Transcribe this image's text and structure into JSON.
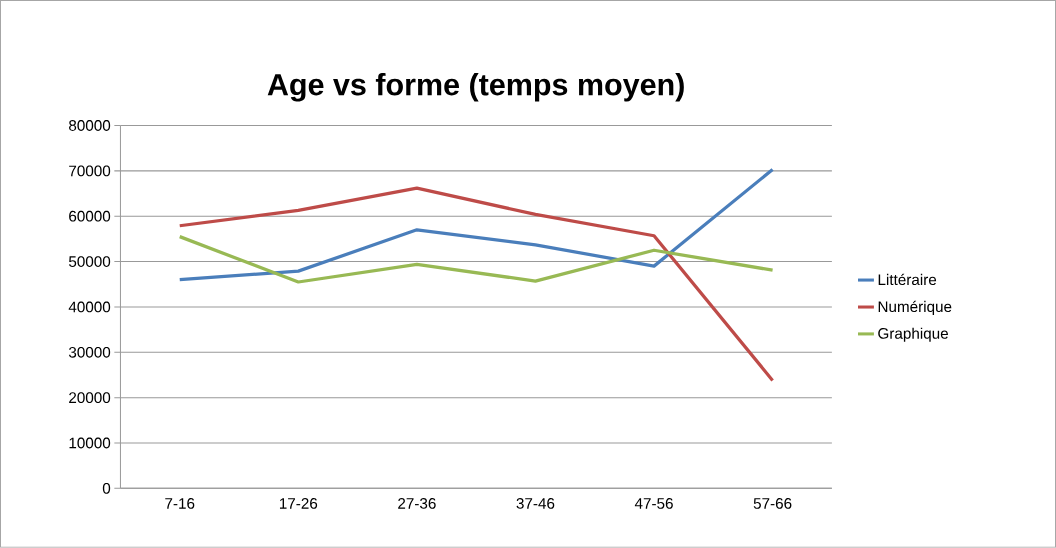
{
  "chart_data": {
    "type": "line",
    "title": "Age vs forme (temps moyen)",
    "categories": [
      "7-16",
      "17-26",
      "27-36",
      "37-46",
      "47-56",
      "57-66"
    ],
    "series": [
      {
        "name": "Littéraire",
        "color": "#4a7ebb",
        "values": [
          46000,
          47900,
          57000,
          53700,
          49000,
          70300
        ]
      },
      {
        "name": "Numérique",
        "color": "#be4b48",
        "values": [
          57900,
          61300,
          66200,
          60400,
          55700,
          23800
        ]
      },
      {
        "name": "Graphique",
        "color": "#98b954",
        "values": [
          55500,
          45500,
          49400,
          45700,
          52500,
          48100
        ]
      }
    ],
    "ylim": [
      0,
      80000
    ],
    "yticks": [
      0,
      10000,
      20000,
      30000,
      40000,
      50000,
      60000,
      70000,
      80000
    ],
    "grid": "y",
    "legend": "right",
    "marker": "none",
    "line_style": "solid"
  }
}
